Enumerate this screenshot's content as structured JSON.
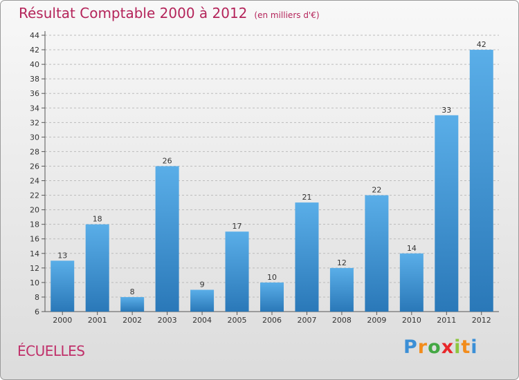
{
  "header": {
    "title": "Résultat Comptable 2000 à 2012",
    "subtitle": "(en milliers d'€)"
  },
  "footer": {
    "commune": "ÉCUELLES",
    "logo_letters": [
      "P",
      "r",
      "o",
      "x",
      "i",
      "t",
      "i"
    ],
    "logo_colors": [
      "#3b8fd6",
      "#f28c1c",
      "#44a844",
      "#e8262a",
      "#8dc63f",
      "#f28c1c",
      "#3b8fd6"
    ]
  },
  "chart_data": {
    "type": "bar",
    "title": "Résultat Comptable 2000 à 2012",
    "ylabel": "en milliers d'€",
    "xlabel": "",
    "categories": [
      "2000",
      "2001",
      "2002",
      "2003",
      "2004",
      "2005",
      "2006",
      "2007",
      "2008",
      "2009",
      "2010",
      "2011",
      "2012"
    ],
    "values": [
      13,
      18,
      8,
      26,
      9,
      17,
      10,
      21,
      12,
      22,
      14,
      33,
      42
    ],
    "ylim": [
      6,
      44
    ],
    "yticks": [
      6,
      8,
      10,
      12,
      14,
      16,
      18,
      20,
      22,
      24,
      26,
      28,
      30,
      32,
      34,
      36,
      38,
      40,
      42,
      44
    ],
    "colors": {
      "bar_light": "#5aaee8",
      "bar_dark": "#2a78b8",
      "grid": "#bbbbbb"
    }
  }
}
